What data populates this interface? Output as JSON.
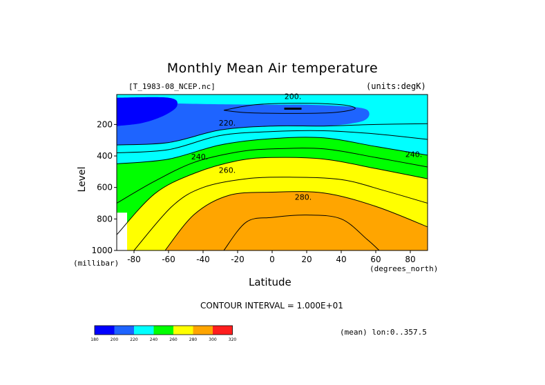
{
  "chart_data": {
    "type": "heatmap",
    "title": "Monthly Mean Air temperature",
    "dataset_label": "[T_1983-08_NCEP.nc]",
    "units_label": "(units:degK)",
    "xlabel": "Latitude",
    "xunits": "(degrees_north)",
    "ylabel": "Level",
    "yunits": "(millibar)",
    "xlim": [
      -90,
      90
    ],
    "ylim": [
      1000,
      10
    ],
    "xticks": [
      "-80",
      "-60",
      "-40",
      "-20",
      "0",
      "20",
      "40",
      "60",
      "80"
    ],
    "xtick_values": [
      -80,
      -60,
      -40,
      -20,
      0,
      20,
      40,
      60,
      80
    ],
    "yticks": [
      "200",
      "400",
      "600",
      "800",
      "1000"
    ],
    "ytick_values": [
      200,
      400,
      600,
      800,
      1000
    ],
    "contour_interval_label": "CONTOUR INTERVAL = 1.000E+01",
    "contour_interval": 10,
    "mean_note": "(mean) lon:0..357.5",
    "contour_labels": [
      {
        "text": "200.",
        "lat": 12,
        "level": 20
      },
      {
        "text": "220.",
        "lat": -26,
        "level": 190
      },
      {
        "text": "240.",
        "lat": -42,
        "level": 405
      },
      {
        "text": "240.",
        "lat": 82,
        "level": 390
      },
      {
        "text": "260.",
        "lat": -26,
        "level": 490
      },
      {
        "text": "280.",
        "lat": 18,
        "level": 660
      }
    ],
    "colorbar": {
      "levels": [
        "180",
        "200",
        "220",
        "240",
        "260",
        "280",
        "300",
        "320"
      ],
      "colors": [
        "#0000ff",
        "#1e64ff",
        "#00ffff",
        "#00ff00",
        "#ffff00",
        "#ffa500",
        "#ff1e1e"
      ]
    },
    "bands": [
      {
        "range": "180-200",
        "color": "#0000ff"
      },
      {
        "range": "200-220",
        "color": "#1e64ff"
      },
      {
        "range": "220-240",
        "color": "#00ffff"
      },
      {
        "range": "240-260",
        "color": "#00ff00"
      },
      {
        "range": "260-280",
        "color": "#ffff00"
      },
      {
        "range": "280-300",
        "color": "#ffa500"
      }
    ],
    "isotherms": [
      {
        "value": 220,
        "lower": [
          [
            -90,
            330
          ],
          [
            -60,
            315
          ],
          [
            -30,
            235
          ],
          [
            0,
            210
          ],
          [
            30,
            210
          ],
          [
            60,
            200
          ],
          [
            90,
            195
          ]
        ]
      },
      {
        "value": 240,
        "lower": [
          [
            -90,
            450
          ],
          [
            -60,
            420
          ],
          [
            -30,
            330
          ],
          [
            0,
            290
          ],
          [
            30,
            285
          ],
          [
            60,
            340
          ],
          [
            90,
            395
          ]
        ]
      },
      {
        "value": 260,
        "lower": [
          [
            -90,
            900
          ],
          [
            -68,
            640
          ],
          [
            -45,
            510
          ],
          [
            -20,
            430
          ],
          [
            0,
            410
          ],
          [
            30,
            420
          ],
          [
            60,
            480
          ],
          [
            90,
            545
          ]
        ]
      },
      {
        "value": 280,
        "lower": [
          [
            -62,
            1000
          ],
          [
            -45,
            770
          ],
          [
            -25,
            650
          ],
          [
            0,
            630
          ],
          [
            30,
            635
          ],
          [
            60,
            720
          ],
          [
            90,
            850
          ]
        ]
      },
      {
        "value": 290,
        "lower": [
          [
            -28,
            1000
          ],
          [
            -15,
            820
          ],
          [
            0,
            790
          ],
          [
            20,
            775
          ],
          [
            40,
            800
          ],
          [
            55,
            930
          ],
          [
            62,
            1000
          ]
        ]
      }
    ]
  }
}
